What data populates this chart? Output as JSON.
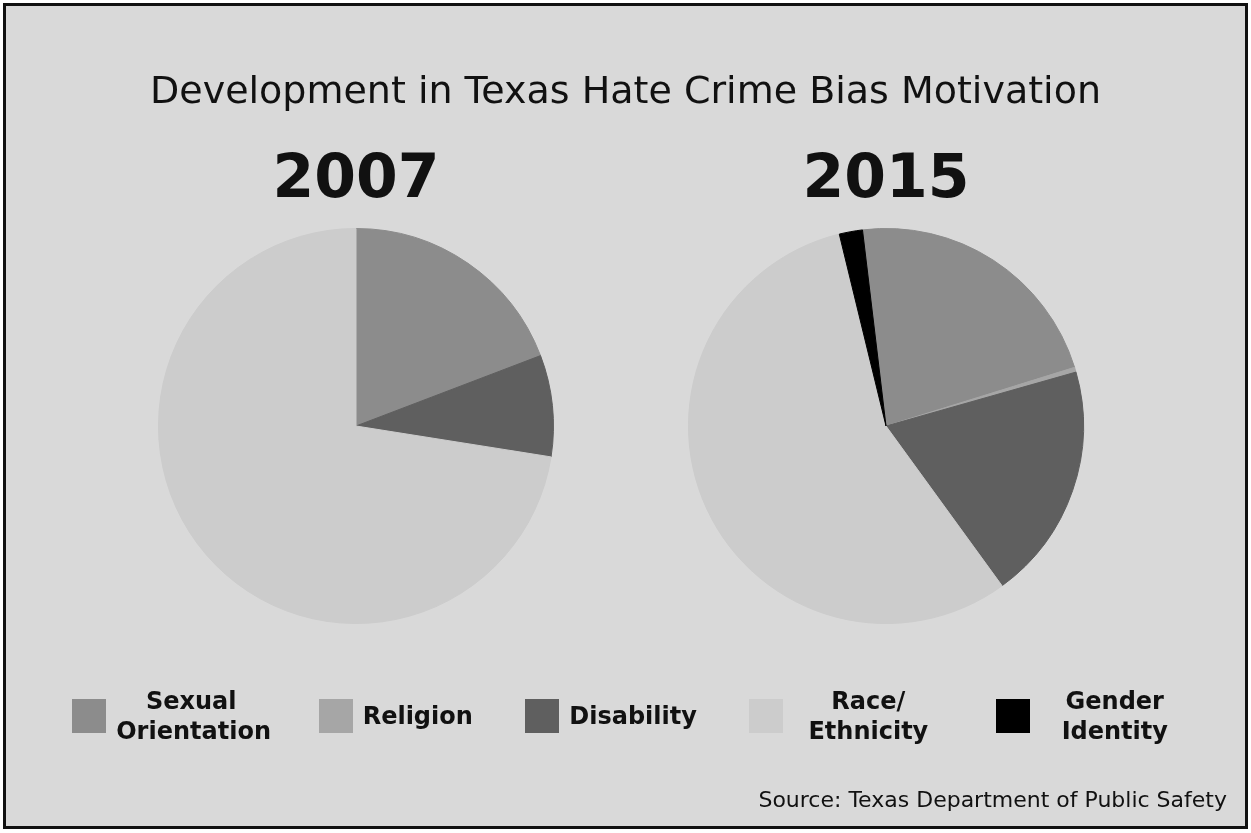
{
  "chart_data": {
    "type": "pie",
    "title": "Development in Texas Hate Crime Bias Motivation",
    "categories": [
      "Sexual Orientation",
      "Religion",
      "Disability",
      "Race/ Ethnicity",
      "Gender Identity"
    ],
    "colors": [
      "#8c8c8c",
      "#a6a6a6",
      "#5f5f5f",
      "#cccccc",
      "#000000"
    ],
    "legend": "bottom",
    "series": [
      {
        "name": "2007",
        "values": [
          19.2,
          0,
          8.3,
          72.5,
          0
        ]
      },
      {
        "name": "2015",
        "values": [
          22.1,
          0.4,
          19.4,
          56.2,
          1.9
        ]
      }
    ],
    "annotations": [
      "Source: Texas Department of Public Safety"
    ]
  }
}
